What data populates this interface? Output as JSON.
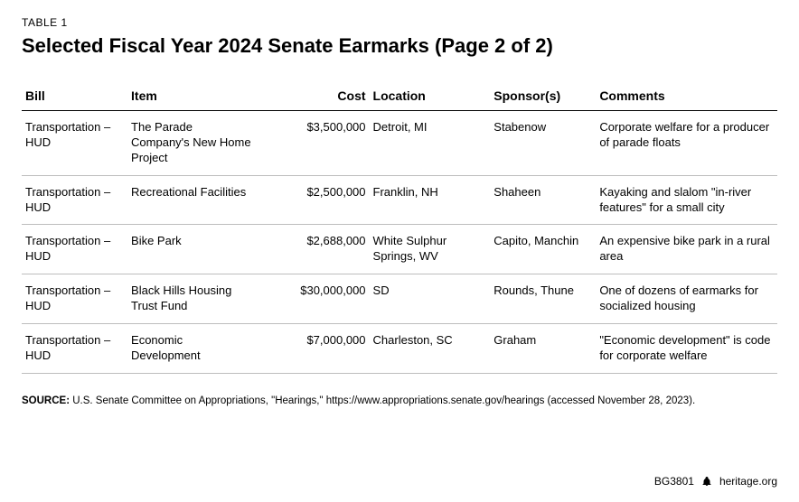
{
  "label": "TABLE 1",
  "title": "Selected Fiscal Year 2024 Senate Earmarks (Page 2 of 2)",
  "table": {
    "type": "table",
    "columns": [
      {
        "label": "Bill",
        "width": "14%",
        "align": "left"
      },
      {
        "label": "Item",
        "width": "17%",
        "align": "left"
      },
      {
        "label": "Cost",
        "width": "15%",
        "align": "right"
      },
      {
        "label": "Location",
        "width": "16%",
        "align": "left"
      },
      {
        "label": "Sponsor(s)",
        "width": "14%",
        "align": "left"
      },
      {
        "label": "Comments",
        "width": "24%",
        "align": "left"
      }
    ],
    "rows": [
      [
        "Transportation – HUD",
        "The Parade Company's New Home Project",
        "$3,500,000",
        "Detroit, MI",
        "Stabenow",
        "Corporate welfare for a producer of parade floats"
      ],
      [
        "Transportation – HUD",
        "Recreational Facilities",
        "$2,500,000",
        "Franklin, NH",
        "Shaheen",
        "Kayaking and slalom \"in-river features\" for a small city"
      ],
      [
        "Transportation – HUD",
        "Bike Park",
        "$2,688,000",
        "White Sulphur Springs, WV",
        "Capito, Manchin",
        "An expensive bike park in a rural area"
      ],
      [
        "Transportation – HUD",
        "Black Hills Housing Trust Fund",
        "$30,000,000",
        "SD",
        "Rounds, Thune",
        "One of dozens of earmarks for socialized housing"
      ],
      [
        "Transportation – HUD",
        "Economic Development",
        "$7,000,000",
        "Charleston, SC",
        "Graham",
        "\"Economic development\" is code for corporate welfare"
      ]
    ],
    "border_color": "#bdbdbd",
    "header_border_color": "#000000",
    "header_fontsize": 14,
    "body_fontsize": 13,
    "background_color": "#ffffff",
    "text_color": "#000000"
  },
  "source_label": "SOURCE:",
  "source_text": " U.S. Senate Committee on Appropriations, \"Hearings,\" https://www.appropriations.senate.gov/hearings (accessed November 28, 2023).",
  "footer": {
    "doc_id": "BG3801",
    "site": "heritage.org",
    "icon": "bell-icon"
  },
  "colors": {
    "text": "#000000",
    "background": "#ffffff",
    "row_border": "#bdbdbd"
  }
}
